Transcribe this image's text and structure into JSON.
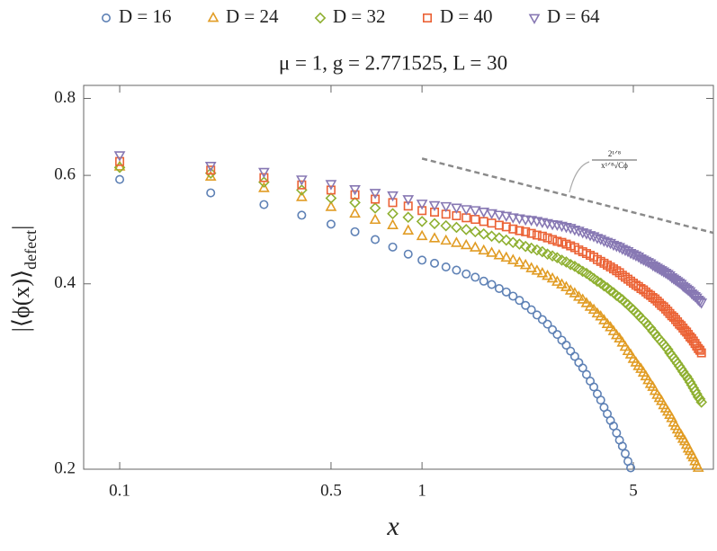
{
  "chart_data": {
    "type": "scatter",
    "title": "μ = 1, g = 2.771525, L = 30",
    "xlabel": "x",
    "ylabel": [
      "|⟨ϕ(x)⟩",
      "defect",
      "|"
    ],
    "log_x": true,
    "log_y": true,
    "xlim": [
      0.076,
      9.2
    ],
    "ylim": [
      0.2,
      0.84
    ],
    "xticks": [
      0.1,
      0.5,
      1,
      5
    ],
    "yticks": [
      0.2,
      0.4,
      0.6,
      0.8
    ],
    "legend_position": "top",
    "x": [
      0.1,
      0.2,
      0.3,
      0.4,
      0.5,
      0.6,
      0.7,
      0.8,
      0.9,
      1.0,
      1.1,
      1.2,
      1.3,
      1.4,
      1.5,
      1.6,
      1.7,
      1.8,
      1.9,
      2.0,
      2.1,
      2.2,
      2.3,
      2.4,
      2.5,
      2.6,
      2.7,
      2.8,
      2.9,
      3.0,
      3.1,
      3.2,
      3.3,
      3.4,
      3.5,
      3.6,
      3.7,
      3.8,
      3.9,
      4.0,
      4.1,
      4.2,
      4.3,
      4.4,
      4.5,
      4.6,
      4.7,
      4.8,
      4.9,
      5.0,
      5.1,
      5.2,
      5.3,
      5.4,
      5.5,
      5.6,
      5.7,
      5.8,
      5.9,
      6.0,
      6.1,
      6.2,
      6.3,
      6.4,
      6.5,
      6.6,
      6.7,
      6.8,
      6.9,
      7.0,
      7.1,
      7.2,
      7.3,
      7.4,
      7.5,
      7.6,
      7.7,
      7.8,
      7.9,
      8.0,
      8.1,
      8.2,
      8.3,
      8.4
    ],
    "series": [
      {
        "name": "D = 16",
        "color": "#5e81b5",
        "marker": "circle",
        "values": [
          0.591,
          0.562,
          0.538,
          0.517,
          0.5,
          0.486,
          0.472,
          0.459,
          0.447,
          0.437,
          0.432,
          0.426,
          0.421,
          0.415,
          0.41,
          0.404,
          0.399,
          0.393,
          0.388,
          0.382,
          0.376,
          0.369,
          0.363,
          0.356,
          0.35,
          0.344,
          0.337,
          0.331,
          0.324,
          0.318,
          0.311,
          0.305,
          0.298,
          0.292,
          0.285,
          0.278,
          0.272,
          0.265,
          0.259,
          0.252,
          0.246,
          0.24,
          0.235,
          0.229,
          0.223,
          0.218,
          0.212,
          0.206,
          0.201,
          null,
          null,
          null,
          null,
          null,
          null,
          null,
          null,
          null,
          null,
          null,
          null,
          null,
          null,
          null,
          null,
          null,
          null,
          null,
          null,
          null,
          null,
          null,
          null,
          null,
          null,
          null,
          null,
          null,
          null,
          null,
          null,
          null,
          null,
          null
        ]
      },
      {
        "name": "D = 24",
        "color": "#e19c24",
        "marker": "triangle",
        "values": [
          0.62,
          0.597,
          0.572,
          0.553,
          0.533,
          0.52,
          0.508,
          0.498,
          0.488,
          0.478,
          0.474,
          0.47,
          0.466,
          0.462,
          0.458,
          0.453,
          0.449,
          0.445,
          0.441,
          0.437,
          0.433,
          0.429,
          0.424,
          0.42,
          0.416,
          0.412,
          0.408,
          0.403,
          0.399,
          0.395,
          0.39,
          0.386,
          0.381,
          0.377,
          0.372,
          0.367,
          0.363,
          0.358,
          0.354,
          0.349,
          0.344,
          0.34,
          0.335,
          0.33,
          0.326,
          0.321,
          0.316,
          0.311,
          0.307,
          0.302,
          0.298,
          0.294,
          0.291,
          0.287,
          0.283,
          0.279,
          0.275,
          0.272,
          0.268,
          0.264,
          0.261,
          0.258,
          0.254,
          0.251,
          0.248,
          0.245,
          0.242,
          0.238,
          0.235,
          0.232,
          0.229,
          0.227,
          0.224,
          0.222,
          0.219,
          0.216,
          0.214,
          0.211,
          0.209,
          0.206,
          0.203,
          0.201,
          null,
          null
        ]
      },
      {
        "name": "D = 32",
        "color": "#8fb032",
        "marker": "diamond",
        "values": [
          0.618,
          0.605,
          0.585,
          0.568,
          0.551,
          0.542,
          0.531,
          0.52,
          0.513,
          0.505,
          0.501,
          0.497,
          0.494,
          0.49,
          0.486,
          0.482,
          0.478,
          0.475,
          0.471,
          0.467,
          0.464,
          0.46,
          0.457,
          0.454,
          0.451,
          0.447,
          0.444,
          0.441,
          0.437,
          0.434,
          0.43,
          0.427,
          0.423,
          0.419,
          0.416,
          0.412,
          0.408,
          0.404,
          0.401,
          0.397,
          0.394,
          0.39,
          0.387,
          0.383,
          0.38,
          0.377,
          0.373,
          0.37,
          0.366,
          0.363,
          0.359,
          0.356,
          0.352,
          0.349,
          0.346,
          0.342,
          0.339,
          0.335,
          0.332,
          0.328,
          0.325,
          0.322,
          0.319,
          0.316,
          0.313,
          0.309,
          0.306,
          0.303,
          0.3,
          0.297,
          0.294,
          0.291,
          0.288,
          0.285,
          0.283,
          0.28,
          0.277,
          0.274,
          0.271,
          0.268,
          0.265,
          0.262,
          0.26,
          0.257
        ]
      },
      {
        "name": "D = 40",
        "color": "#eb6235",
        "marker": "square",
        "values": [
          0.632,
          0.612,
          0.595,
          0.579,
          0.568,
          0.558,
          0.549,
          0.542,
          0.535,
          0.526,
          0.523,
          0.519,
          0.516,
          0.512,
          0.509,
          0.505,
          0.502,
          0.498,
          0.495,
          0.491,
          0.488,
          0.486,
          0.483,
          0.48,
          0.478,
          0.475,
          0.472,
          0.469,
          0.467,
          0.464,
          0.461,
          0.458,
          0.454,
          0.451,
          0.448,
          0.445,
          0.442,
          0.438,
          0.435,
          0.432,
          0.429,
          0.426,
          0.423,
          0.42,
          0.417,
          0.413,
          0.41,
          0.407,
          0.404,
          0.401,
          0.398,
          0.396,
          0.393,
          0.391,
          0.388,
          0.385,
          0.383,
          0.38,
          0.378,
          0.375,
          0.372,
          0.369,
          0.367,
          0.364,
          0.361,
          0.358,
          0.355,
          0.353,
          0.35,
          0.347,
          0.344,
          0.342,
          0.339,
          0.336,
          0.334,
          0.331,
          0.328,
          0.326,
          0.323,
          0.32,
          0.317,
          0.314,
          0.312,
          0.309
        ]
      },
      {
        "name": "D = 64",
        "color": "#8778b3",
        "marker": "triangle-down",
        "values": [
          0.647,
          0.622,
          0.608,
          0.591,
          0.581,
          0.57,
          0.562,
          0.557,
          0.549,
          0.54,
          0.537,
          0.535,
          0.532,
          0.529,
          0.527,
          0.524,
          0.521,
          0.518,
          0.516,
          0.513,
          0.511,
          0.509,
          0.508,
          0.506,
          0.504,
          0.502,
          0.5,
          0.499,
          0.497,
          0.495,
          0.493,
          0.49,
          0.488,
          0.485,
          0.483,
          0.48,
          0.478,
          0.475,
          0.473,
          0.47,
          0.468,
          0.466,
          0.463,
          0.461,
          0.459,
          0.456,
          0.454,
          0.452,
          0.449,
          0.447,
          0.445,
          0.443,
          0.44,
          0.438,
          0.436,
          0.434,
          0.432,
          0.429,
          0.427,
          0.425,
          0.423,
          0.421,
          0.419,
          0.417,
          0.415,
          0.413,
          0.41,
          0.408,
          0.406,
          0.404,
          0.402,
          0.4,
          0.397,
          0.395,
          0.393,
          0.391,
          0.389,
          0.386,
          0.384,
          0.382,
          0.38,
          0.377,
          0.375,
          0.373
        ]
      }
    ],
    "reference_line": {
      "x": [
        1,
        9.2
      ],
      "values": [
        0.639,
        0.484
      ],
      "color": "#8a8a8a",
      "numerator": "2¹ᐟ⁸",
      "denominator": "x¹ᐟ⁸√Cϕ"
    }
  }
}
